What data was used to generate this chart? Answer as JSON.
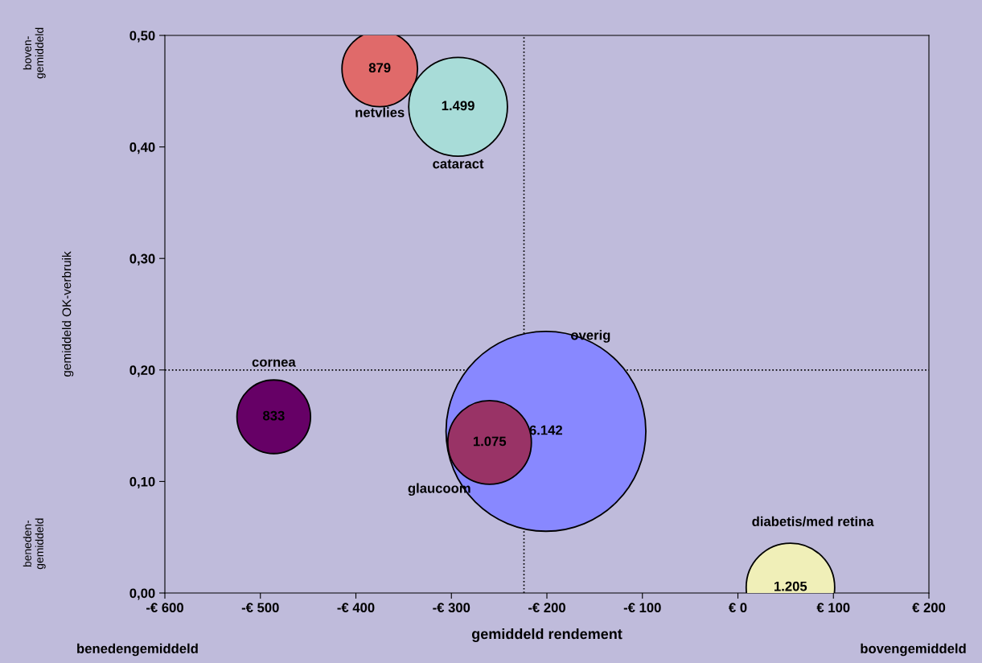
{
  "chart_data": {
    "type": "bubble",
    "xlabel": "gemiddeld rendement",
    "ylabel": "gemiddeld OK-verbruik",
    "annotations": [
      "boven-\ngemiddeld",
      "beneden-\ngemiddeld",
      "benedengemiddeld",
      "bovengemiddeld"
    ],
    "series": [
      {
        "name": "netvlies",
        "color": "#e06a6a",
        "x": [
          -375
        ],
        "values": [
          0.47
        ],
        "sizes": [
          879
        ],
        "value_labels": [
          "879"
        ]
      },
      {
        "name": "cataract",
        "color": "#a8dcd8",
        "x": [
          -293
        ],
        "values": [
          0.436
        ],
        "sizes": [
          1499
        ],
        "value_labels": [
          "1.499"
        ]
      },
      {
        "name": "cornea",
        "color": "#660066",
        "x": [
          -486
        ],
        "values": [
          0.158
        ],
        "sizes": [
          833
        ],
        "value_labels": [
          "833"
        ]
      },
      {
        "name": "overig",
        "color": "#8888ff",
        "x": [
          -201
        ],
        "values": [
          0.145
        ],
        "sizes": [
          6142
        ],
        "value_labels": [
          "6.142"
        ]
      },
      {
        "name": "glaucoom",
        "color": "#993366",
        "x": [
          -260
        ],
        "values": [
          0.135
        ],
        "sizes": [
          1075
        ],
        "value_labels": [
          "1.075"
        ]
      },
      {
        "name": "diabetis/med retina",
        "color": "#f0efb8",
        "x": [
          55
        ],
        "values": [
          0.005
        ],
        "sizes": [
          1205
        ],
        "value_labels": [
          "1.205"
        ]
      }
    ],
    "xlim": [
      -600,
      200
    ],
    "xticks": [
      {
        "value": -600,
        "label": "-€ 600"
      },
      {
        "value": -500,
        "label": "-€ 500"
      },
      {
        "value": -400,
        "label": "-€ 400"
      },
      {
        "value": -300,
        "label": "-€ 300"
      },
      {
        "value": -200,
        "label": "-€ 200"
      },
      {
        "value": -100,
        "label": "-€ 100"
      },
      {
        "value": 0,
        "label": "€ 0"
      },
      {
        "value": 100,
        "label": "€ 100"
      },
      {
        "value": 200,
        "label": "€ 200"
      }
    ],
    "ylim": [
      0,
      0.5
    ],
    "yticks": [
      {
        "value": 0,
        "label": "0,00"
      },
      {
        "value": 0.1,
        "label": "0,10"
      },
      {
        "value": 0.2,
        "label": "0,20"
      },
      {
        "value": 0.3,
        "label": "0,30"
      },
      {
        "value": 0.4,
        "label": "0,40"
      },
      {
        "value": 0.5,
        "label": "0,50"
      }
    ],
    "ref_lines": [
      {
        "axis": "x",
        "value": -224,
        "line_style": "dotted",
        "color": "#000000"
      },
      {
        "axis": "y",
        "value": 0.2,
        "line_style": "dotted",
        "color": "#000000"
      }
    ],
    "grid": false,
    "legend": false
  }
}
